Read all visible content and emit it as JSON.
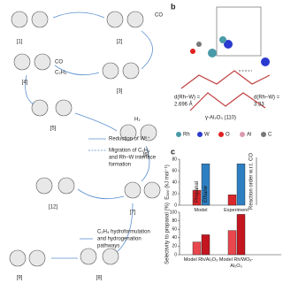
{
  "scheme": {
    "labels": [
      "[1]",
      "[2]",
      "[3]",
      "[4]",
      "[5]",
      "[6]",
      "[7]",
      "[8]",
      "[9]",
      "[12]"
    ],
    "reagents": [
      "CO",
      "CO",
      "C₂H₄",
      "H₂"
    ],
    "legend": [
      "Reduction of W⁶⁺",
      "Migration of C₂H₄",
      "and Rh–W interface",
      "formation"
    ],
    "pathway": [
      "C₂H₄ hydroformulation",
      "and hydrogenation",
      "pathways"
    ]
  },
  "panel_b": {
    "letter": "b",
    "left_distance": [
      "d(Rh–W) =",
      "2.696 Å"
    ],
    "surface": "γ-Al₂O₃ (110)",
    "right_distance": [
      "d(Rh–W) =",
      "3.33"
    ],
    "legend": [
      {
        "label": "Rh",
        "color": "#4a9aa8"
      },
      {
        "label": "W",
        "color": "#2a3ad0"
      },
      {
        "label": "O",
        "color": "#e02020"
      },
      {
        "label": "Al",
        "color": "#d99ab0"
      },
      {
        "label": "C",
        "color": "#777777"
      }
    ]
  },
  "panel_c": {
    "letter": "c",
    "side_axis_label": "Reaction order w.r.t. CO"
  },
  "chart_data": [
    {
      "type": "bar",
      "y_label": "Eₐₚₚ (kJ mol⁻¹)",
      "categories": [
        "Model",
        "Experiment"
      ],
      "series": [
        {
          "name": "Propanal",
          "color": "#d9262b",
          "values": [
            26,
            18
          ]
        },
        {
          "name": "Ethane",
          "color": "#2e7fc2",
          "values": [
            72,
            72
          ]
        }
      ],
      "ylim": [
        0,
        80
      ],
      "yticks": [
        0,
        20,
        40,
        60,
        80
      ]
    },
    {
      "type": "bar",
      "y_label": "Selectivity to propanal (%)",
      "categories": [
        "Model Rh/Al₂O₃",
        "Model Rh/WOₓ-Al₂O₃"
      ],
      "series": [
        {
          "color": "#e8474d",
          "values": [
            30,
            57
          ]
        },
        {
          "color": "#c41620",
          "values": [
            47,
            95
          ]
        }
      ],
      "ylim": [
        0,
        100
      ],
      "yticks": [
        0,
        20,
        40,
        60,
        80,
        100
      ]
    }
  ]
}
